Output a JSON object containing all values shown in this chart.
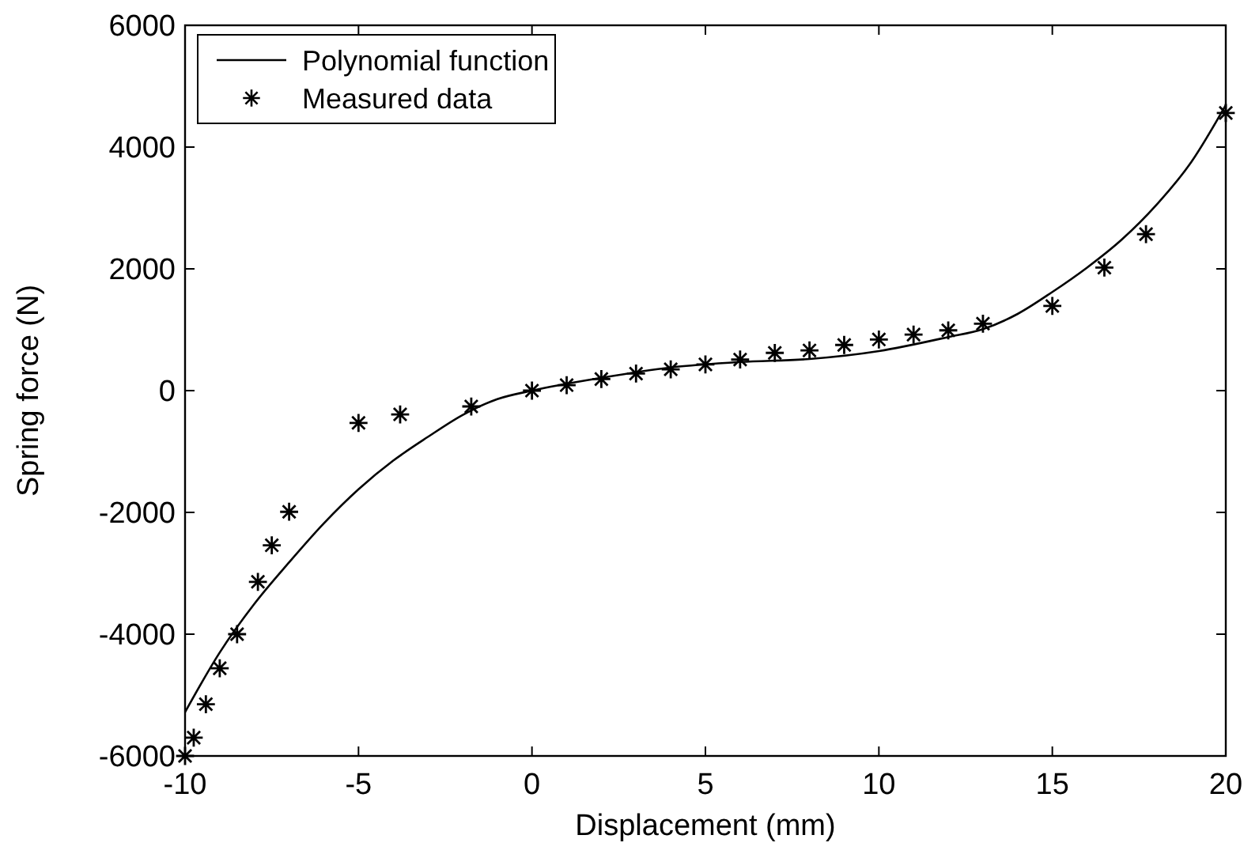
{
  "chart_data": {
    "type": "scatter",
    "xlabel": "Displacement (mm)",
    "ylabel": "Spring force (N)",
    "xlim": [
      -10,
      20
    ],
    "ylim": [
      -6000,
      6000
    ],
    "xticks": [
      -10,
      -5,
      0,
      5,
      10,
      15,
      20
    ],
    "yticks": [
      -6000,
      -4000,
      -2000,
      0,
      2000,
      4000,
      6000
    ],
    "grid": false,
    "legend": "top left",
    "series": [
      {
        "name": "Polynomial function",
        "type": "line",
        "color": "#000000",
        "marker": "none",
        "line_style": "solid",
        "x": [
          -10,
          -9,
          -8,
          -7,
          -6,
          -5,
          -4,
          -3,
          -2,
          -1,
          0,
          2,
          4,
          6,
          8,
          10,
          12,
          13,
          14,
          15,
          16,
          17,
          18,
          19,
          20
        ],
        "values": [
          -5280,
          -4300,
          -3500,
          -2820,
          -2180,
          -1620,
          -1150,
          -760,
          -400,
          -140,
          0,
          210,
          380,
          470,
          520,
          650,
          880,
          1010,
          1260,
          1620,
          2020,
          2480,
          3050,
          3750,
          4690
        ]
      },
      {
        "name": "Measured data",
        "color": "#000000",
        "marker": "cross",
        "x": [
          -10,
          -9.75,
          -9.4,
          -9,
          -8.5,
          -7.9,
          -7.5,
          -7,
          -5,
          -3.8,
          -1.75,
          0,
          1,
          2,
          3,
          4,
          5,
          6,
          7,
          8,
          9,
          10,
          11,
          12,
          13,
          15,
          16.5,
          17.7,
          20
        ],
        "values": [
          -6000,
          -5700,
          -5150,
          -4560,
          -4000,
          -3140,
          -2540,
          -1990,
          -530,
          -390,
          -260,
          0,
          90,
          190,
          280,
          350,
          430,
          510,
          620,
          660,
          750,
          840,
          920,
          990,
          1100,
          1390,
          2020,
          2570,
          4560
        ]
      }
    ]
  }
}
